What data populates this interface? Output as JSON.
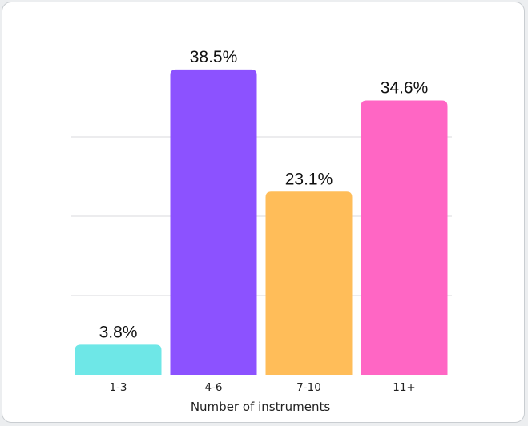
{
  "chart_data": {
    "type": "bar",
    "title": "",
    "xlabel": "Number of instruments",
    "ylabel": "",
    "categories": [
      "1-3",
      "4-6",
      "7-10",
      "11+"
    ],
    "values": [
      3.8,
      38.5,
      23.1,
      34.6
    ],
    "value_labels": [
      "3.8%",
      "38.5%",
      "23.1%",
      "34.6%"
    ],
    "colors": [
      "#6ee7e7",
      "#8c52ff",
      "#ffbd59",
      "#ff66c4"
    ],
    "ylim": [
      0,
      40
    ],
    "gridlines": [
      10,
      20,
      30
    ],
    "grid": true,
    "legend": "none"
  }
}
